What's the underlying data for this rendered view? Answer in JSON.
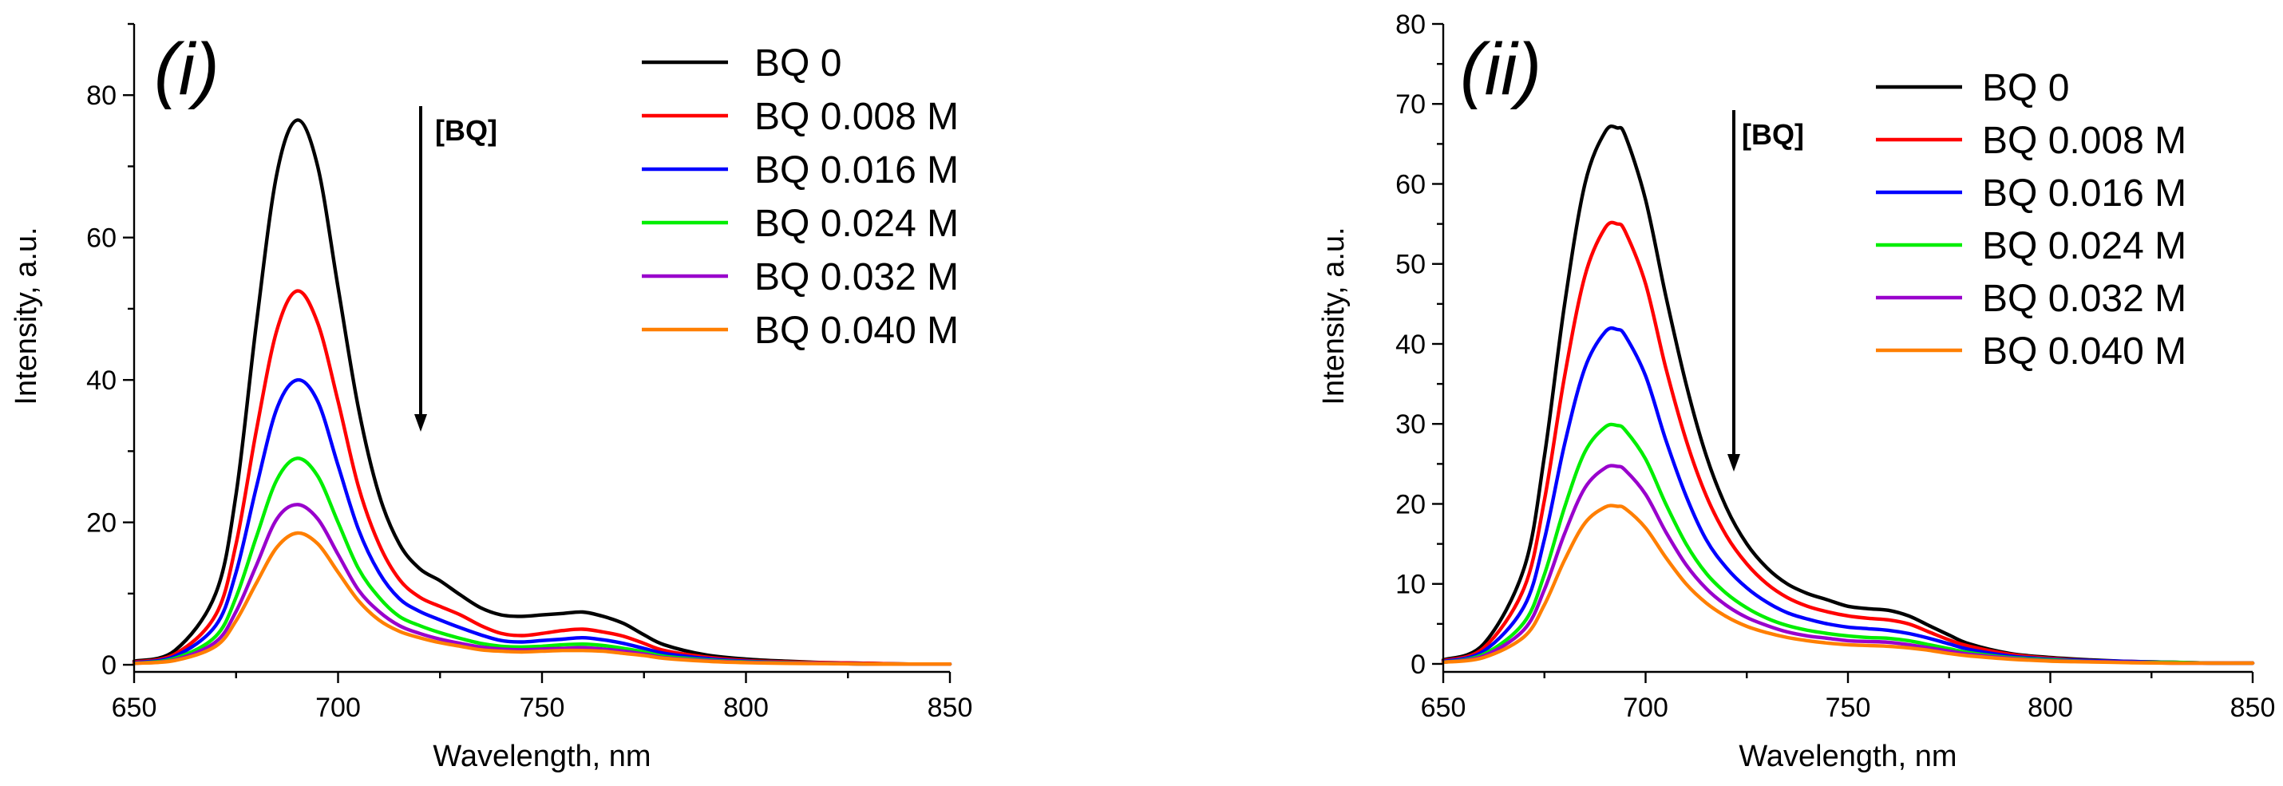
{
  "chart_data": [
    {
      "type": "line",
      "panel_label": "(i)",
      "xlabel": "Wavelength, nm",
      "ylabel": "Intensity, a.u.",
      "xlim": [
        650,
        850
      ],
      "ylim": [
        -1,
        90
      ],
      "xticks": [
        650,
        700,
        750,
        800,
        850
      ],
      "yticks": [
        0,
        20,
        40,
        60,
        80
      ],
      "annotation": "[BQ]",
      "legend_position": "top-right",
      "x": [
        650,
        660,
        670,
        675,
        680,
        685,
        690,
        695,
        700,
        705,
        710,
        715,
        720,
        725,
        730,
        735,
        740,
        745,
        750,
        755,
        760,
        765,
        770,
        775,
        780,
        790,
        800,
        810,
        820,
        830,
        840,
        850
      ],
      "series": [
        {
          "name": "BQ 0",
          "color": "#000000",
          "values": [
            0.5,
            2,
            10,
            24,
            48,
            69,
            76.5,
            70,
            53,
            36,
            24,
            17,
            13.5,
            11.8,
            9.8,
            8,
            7,
            6.8,
            7,
            7.2,
            7.4,
            6.8,
            5.8,
            4.2,
            2.8,
            1.4,
            0.8,
            0.5,
            0.3,
            0.2,
            0.1,
            0.1
          ]
        },
        {
          "name": "BQ 0.008 M",
          "color": "#ff0000",
          "values": [
            0.4,
            1.5,
            7,
            17,
            33,
            47,
            52.5,
            48,
            37,
            25,
            17,
            12,
            9.5,
            8.2,
            7,
            5.5,
            4.4,
            4.1,
            4.4,
            4.8,
            5,
            4.6,
            4,
            3,
            2,
            1.1,
            0.6,
            0.4,
            0.3,
            0.2,
            0.1,
            0.1
          ]
        },
        {
          "name": "BQ 0.016 M",
          "color": "#0000ff",
          "values": [
            0.3,
            1.2,
            5.5,
            13,
            25,
            36,
            40,
            37,
            28,
            19,
            13,
            9.3,
            7.5,
            6.3,
            5.2,
            4.2,
            3.4,
            3.2,
            3.4,
            3.6,
            3.8,
            3.5,
            3,
            2.3,
            1.6,
            0.9,
            0.5,
            0.3,
            0.2,
            0.1,
            0.1,
            0.1
          ]
        },
        {
          "name": "BQ 0.024 M",
          "color": "#00ee00",
          "values": [
            0.2,
            0.9,
            4,
            9.5,
            18,
            26,
            29,
            26.5,
            20,
            13.5,
            9.5,
            6.8,
            5.5,
            4.5,
            3.7,
            3,
            2.6,
            2.5,
            2.6,
            2.8,
            2.9,
            2.7,
            2.3,
            1.8,
            1.2,
            0.7,
            0.4,
            0.3,
            0.2,
            0.1,
            0.1,
            0.1
          ]
        },
        {
          "name": "BQ 0.032 M",
          "color": "#9900cc",
          "values": [
            0.2,
            0.7,
            3.2,
            7.5,
            14,
            20.5,
            22.5,
            20.5,
            15.5,
            10.5,
            7.5,
            5.5,
            4.4,
            3.6,
            3,
            2.5,
            2.2,
            2.1,
            2.2,
            2.3,
            2.4,
            2.2,
            1.9,
            1.5,
            1,
            0.6,
            0.35,
            0.25,
            0.2,
            0.1,
            0.1,
            0.1
          ]
        },
        {
          "name": "BQ 0.040 M",
          "color": "#ff7f00",
          "values": [
            0.2,
            0.6,
            2.6,
            6.2,
            11.5,
            16.5,
            18.5,
            17,
            13,
            9,
            6.3,
            4.7,
            3.8,
            3.1,
            2.6,
            2.1,
            1.9,
            1.8,
            1.9,
            2,
            2,
            1.9,
            1.6,
            1.3,
            0.9,
            0.5,
            0.3,
            0.2,
            0.15,
            0.1,
            0.1,
            0.1
          ]
        }
      ]
    },
    {
      "type": "line",
      "panel_label": "(ii)",
      "xlabel": "Wavelength, nm",
      "ylabel": "Intensity, a.u.",
      "xlim": [
        650,
        850
      ],
      "ylim": [
        -1,
        80
      ],
      "xticks": [
        650,
        700,
        750,
        800,
        850
      ],
      "yticks": [
        0,
        10,
        20,
        30,
        40,
        50,
        60,
        70,
        80
      ],
      "annotation": "[BQ]",
      "legend_position": "top-right",
      "x": [
        650,
        660,
        670,
        675,
        680,
        685,
        690,
        693,
        695,
        700,
        705,
        710,
        715,
        720,
        725,
        730,
        735,
        740,
        745,
        750,
        755,
        760,
        765,
        770,
        775,
        780,
        790,
        800,
        810,
        820,
        830,
        840,
        850
      ],
      "series": [
        {
          "name": "BQ 0",
          "color": "#000000",
          "values": [
            0.5,
            2.5,
            12,
            26,
            45,
            60,
            66.5,
            67,
            66,
            58,
            46,
            35,
            26,
            19.5,
            15,
            12,
            10,
            8.8,
            8,
            7.2,
            6.9,
            6.7,
            6,
            4.8,
            3.6,
            2.5,
            1.3,
            0.8,
            0.5,
            0.3,
            0.2,
            0.1,
            0.1
          ]
        },
        {
          "name": "BQ 0.008 M",
          "color": "#ff0000",
          "values": [
            0.4,
            2,
            9.5,
            20.5,
            36,
            48.5,
            54.5,
            55,
            54,
            47.5,
            37,
            28,
            21,
            16,
            12.5,
            10,
            8.3,
            7.2,
            6.5,
            6,
            5.7,
            5.5,
            5,
            4,
            3,
            2.2,
            1.2,
            0.7,
            0.4,
            0.3,
            0.2,
            0.1,
            0.1
          ]
        },
        {
          "name": "BQ 0.016 M",
          "color": "#0000ff",
          "values": [
            0.3,
            1.6,
            7.2,
            15.6,
            27.5,
            37,
            41.5,
            41.8,
            41,
            36,
            28,
            21,
            15.5,
            12,
            9.5,
            7.7,
            6.4,
            5.6,
            5,
            4.6,
            4.4,
            4.2,
            3.8,
            3.2,
            2.5,
            1.8,
            1,
            0.6,
            0.4,
            0.3,
            0.2,
            0.1,
            0.1
          ]
        },
        {
          "name": "BQ 0.024 M",
          "color": "#00ee00",
          "values": [
            0.2,
            1.2,
            5.2,
            11.2,
            19.6,
            26.5,
            29.6,
            29.8,
            29.2,
            25.6,
            20,
            15,
            11.3,
            8.8,
            7,
            5.7,
            4.8,
            4.2,
            3.8,
            3.5,
            3.3,
            3.2,
            2.9,
            2.4,
            1.9,
            1.4,
            0.8,
            0.5,
            0.3,
            0.2,
            0.2,
            0.1,
            0.1
          ]
        },
        {
          "name": "BQ 0.032 M",
          "color": "#9900cc",
          "values": [
            0.2,
            1,
            4.3,
            9.3,
            16.3,
            22,
            24.5,
            24.7,
            24.2,
            21.2,
            16.5,
            12.4,
            9.4,
            7.3,
            5.8,
            4.8,
            4,
            3.5,
            3.2,
            2.9,
            2.8,
            2.7,
            2.4,
            2,
            1.6,
            1.2,
            0.7,
            0.4,
            0.3,
            0.2,
            0.1,
            0.1,
            0.1
          ]
        },
        {
          "name": "BQ 0.040 M",
          "color": "#ff7f00",
          "values": [
            0.2,
            0.8,
            3.4,
            7.4,
            13,
            17.6,
            19.6,
            19.7,
            19.4,
            17,
            13.3,
            10,
            7.6,
            5.9,
            4.7,
            3.9,
            3.3,
            2.9,
            2.6,
            2.4,
            2.3,
            2.2,
            2,
            1.7,
            1.3,
            1,
            0.6,
            0.35,
            0.25,
            0.15,
            0.1,
            0.1,
            0.1
          ]
        }
      ]
    }
  ]
}
